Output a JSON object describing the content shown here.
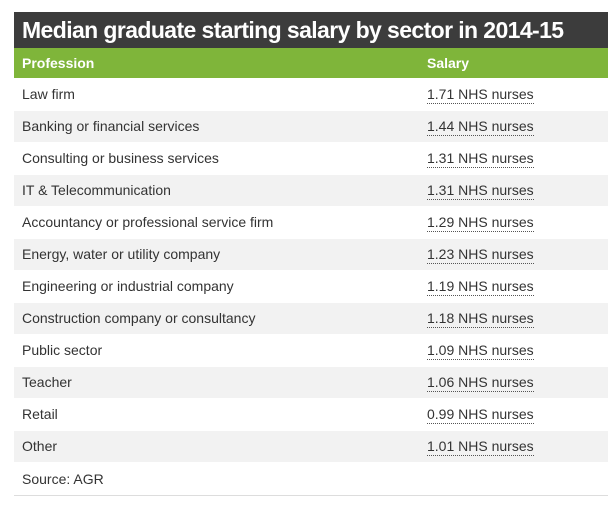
{
  "title": "Median graduate starting salary by sector in 2014-15",
  "header": {
    "profession": "Profession",
    "salary": "Salary"
  },
  "chart_data": {
    "type": "table",
    "title": "Median graduate starting salary by sector in 2014-15",
    "columns": [
      "Profession",
      "Salary"
    ],
    "rows": [
      {
        "profession": "Law firm",
        "salary": "1.71 NHS nurses"
      },
      {
        "profession": "Banking or financial services",
        "salary": "1.44 NHS nurses"
      },
      {
        "profession": "Consulting or business services",
        "salary": "1.31 NHS nurses"
      },
      {
        "profession": "IT & Telecommunication",
        "salary": "1.31 NHS nurses"
      },
      {
        "profession": "Accountancy or professional service firm",
        "salary": "1.29 NHS nurses"
      },
      {
        "profession": "Energy, water or utility company",
        "salary": "1.23 NHS nurses"
      },
      {
        "profession": "Engineering or industrial company",
        "salary": "1.19 NHS nurses"
      },
      {
        "profession": "Construction company or consultancy",
        "salary": "1.18 NHS nurses"
      },
      {
        "profession": "Public sector",
        "salary": "1.09 NHS nurses"
      },
      {
        "profession": "Teacher",
        "salary": "1.06 NHS nurses"
      },
      {
        "profession": "Retail",
        "salary": "0.99 NHS nurses"
      },
      {
        "profession": "Other",
        "salary": "1.01 NHS nurses"
      }
    ]
  },
  "source": "Source: AGR"
}
